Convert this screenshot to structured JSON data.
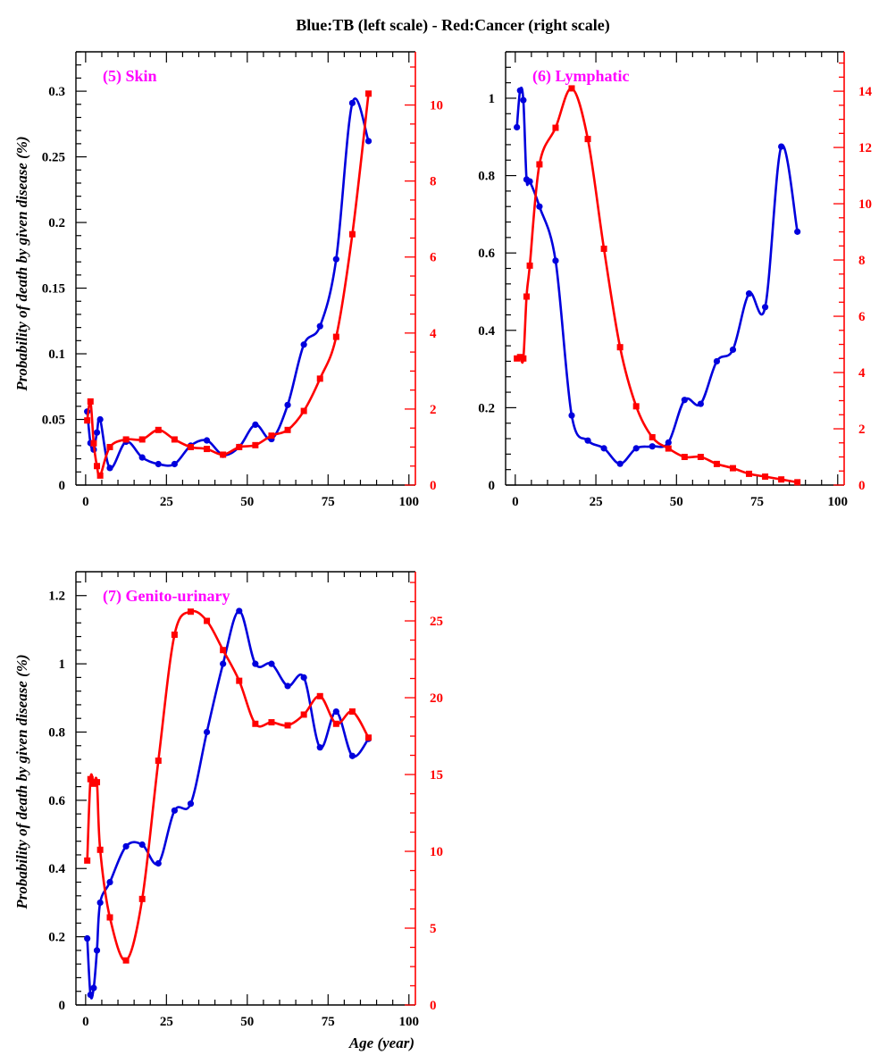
{
  "figure": {
    "title": "Blue:TB (left scale) - Red:Cancer (right scale)",
    "xlabel": "Age (year)",
    "ylabel": "Probability of death by given disease (%)"
  },
  "colors": {
    "tb": "#0000dd",
    "cancer": "#ff0000",
    "panel_title": "#ff00ff",
    "axis": "#000000"
  },
  "chart_data": [
    {
      "type": "line",
      "title": "(5) Skin",
      "xlim": [
        -3,
        102
      ],
      "xticks": [
        0,
        25,
        50,
        75,
        100
      ],
      "ylim_left": [
        0,
        0.33
      ],
      "yticks_left": [
        0,
        0.05,
        0.1,
        0.15,
        0.2,
        0.25,
        0.3
      ],
      "ylim_right": [
        0,
        11.4
      ],
      "yticks_right": [
        0,
        2,
        4,
        6,
        8,
        10
      ],
      "series": [
        {
          "axis": "left",
          "x": [
            0.5,
            1.5,
            2.5,
            3.5,
            4.5,
            7.5,
            12.5,
            17.5,
            22.5,
            27.5,
            32.5,
            37.5,
            42.5,
            47.5,
            52.5,
            57.5,
            62.5,
            67.5,
            72.5,
            77.5,
            82.5,
            87.5
          ],
          "y": [
            0.056,
            0.032,
            0.027,
            0.04,
            0.05,
            0.013,
            0.033,
            0.021,
            0.016,
            0.016,
            0.03,
            0.034,
            0.023,
            0.029,
            0.046,
            0.035,
            0.061,
            0.107,
            0.121,
            0.172,
            0.291,
            0.262
          ]
        },
        {
          "axis": "right",
          "x": [
            0.5,
            1.5,
            2.5,
            3.5,
            4.5,
            7.5,
            12.5,
            17.5,
            22.5,
            27.5,
            32.5,
            37.5,
            42.5,
            47.5,
            52.5,
            57.5,
            62.5,
            67.5,
            72.5,
            77.5,
            82.5,
            87.5
          ],
          "y": [
            1.7,
            2.2,
            1.1,
            0.5,
            0.25,
            1.0,
            1.2,
            1.2,
            1.45,
            1.2,
            1.0,
            0.95,
            0.8,
            1.0,
            1.05,
            1.3,
            1.45,
            1.95,
            2.8,
            3.9,
            6.6,
            10.3
          ]
        }
      ]
    },
    {
      "type": "line",
      "title": "(6) Lymphatic",
      "xlim": [
        -3,
        102
      ],
      "xticks": [
        0,
        25,
        50,
        75,
        100
      ],
      "ylim_left": [
        0,
        1.12
      ],
      "yticks_left": [
        0,
        0.2,
        0.4,
        0.6,
        0.8,
        1
      ],
      "ylim_right": [
        0,
        15.4
      ],
      "yticks_right": [
        0,
        2,
        4,
        6,
        8,
        10,
        12,
        14
      ],
      "series": [
        {
          "axis": "left",
          "x": [
            0.5,
            1.5,
            2.5,
            3.5,
            4.5,
            7.5,
            12.5,
            17.5,
            22.5,
            27.5,
            32.5,
            37.5,
            42.5,
            47.5,
            52.5,
            57.5,
            62.5,
            67.5,
            72.5,
            77.5,
            82.5,
            87.5
          ],
          "y": [
            0.925,
            1.02,
            0.995,
            0.79,
            0.785,
            0.72,
            0.58,
            0.18,
            0.115,
            0.095,
            0.055,
            0.095,
            0.1,
            0.11,
            0.22,
            0.21,
            0.32,
            0.35,
            0.495,
            0.46,
            0.875,
            0.655
          ]
        },
        {
          "axis": "right",
          "x": [
            0.5,
            1.5,
            2.5,
            3.5,
            4.5,
            7.5,
            12.5,
            17.5,
            22.5,
            27.5,
            32.5,
            37.5,
            42.5,
            47.5,
            52.5,
            57.5,
            62.5,
            67.5,
            72.5,
            77.5,
            82.5,
            87.5
          ],
          "y": [
            4.5,
            4.55,
            4.5,
            6.7,
            7.8,
            11.4,
            12.7,
            14.1,
            12.3,
            8.4,
            4.9,
            2.8,
            1.7,
            1.3,
            1.0,
            1.0,
            0.75,
            0.6,
            0.4,
            0.3,
            0.2,
            0.1
          ]
        }
      ]
    },
    {
      "type": "line",
      "title": "(7) Genito-urinary",
      "xlim": [
        -3,
        102
      ],
      "xticks": [
        0,
        25,
        50,
        75,
        100
      ],
      "ylim_left": [
        0,
        1.27
      ],
      "yticks_left": [
        0,
        0.2,
        0.4,
        0.6,
        0.8,
        1,
        1.2
      ],
      "ylim_right": [
        0,
        28.2
      ],
      "yticks_right": [
        0,
        5,
        10,
        15,
        20,
        25
      ],
      "series": [
        {
          "axis": "left",
          "x": [
            0.5,
            1.5,
            2.5,
            3.5,
            4.5,
            7.5,
            12.5,
            17.5,
            22.5,
            27.5,
            32.5,
            37.5,
            42.5,
            47.5,
            52.5,
            57.5,
            62.5,
            67.5,
            72.5,
            77.5,
            82.5,
            87.5
          ],
          "y": [
            0.195,
            0.03,
            0.05,
            0.16,
            0.3,
            0.36,
            0.465,
            0.47,
            0.415,
            0.57,
            0.59,
            0.8,
            1.0,
            1.155,
            1.0,
            1.0,
            0.935,
            0.96,
            0.755,
            0.86,
            0.73,
            0.78
          ]
        },
        {
          "axis": "right",
          "x": [
            0.5,
            1.5,
            2.5,
            3.5,
            4.5,
            7.5,
            12.5,
            17.5,
            22.5,
            27.5,
            32.5,
            37.5,
            42.5,
            47.5,
            52.5,
            57.5,
            62.5,
            67.5,
            72.5,
            77.5,
            82.5,
            87.5
          ],
          "y": [
            9.4,
            14.7,
            14.4,
            14.5,
            10.1,
            5.7,
            2.9,
            6.9,
            15.9,
            24.1,
            25.6,
            25.0,
            23.1,
            21.1,
            18.3,
            18.4,
            18.2,
            18.9,
            20.1,
            18.3,
            19.1,
            17.4
          ]
        }
      ]
    }
  ]
}
